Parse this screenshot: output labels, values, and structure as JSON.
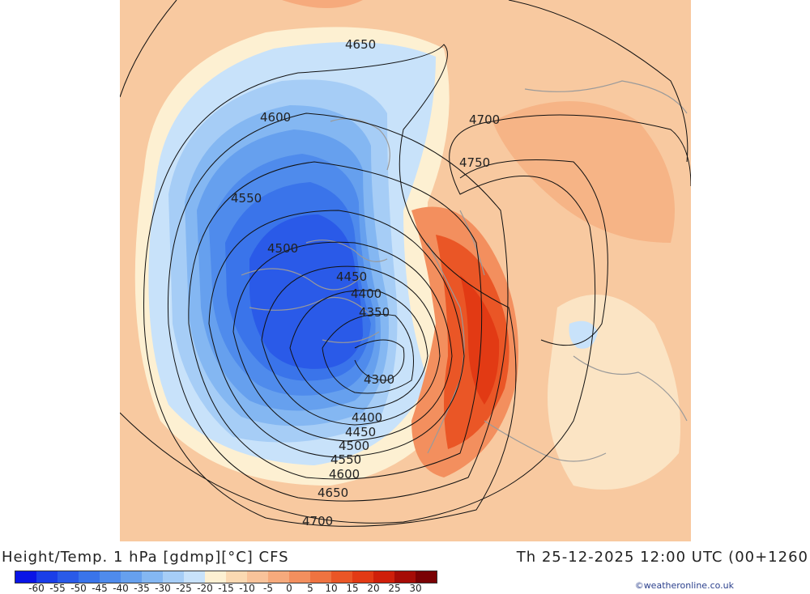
{
  "caption": {
    "left": "Height/Temp. 1 hPa [gdmp][°C] CFS",
    "right": "Th 25-12-2025 12:00 UTC (00+1260"
  },
  "credit": "©weatheronline.co.uk",
  "legend": {
    "ticks": [
      "-60",
      "-55",
      "-50",
      "-45",
      "-40",
      "-35",
      "-30",
      "-25",
      "-20",
      "-15",
      "-10",
      "-5",
      "0",
      "5",
      "10",
      "15",
      "20",
      "25",
      "30"
    ],
    "colors": [
      "#0a14e6",
      "#1a3ee8",
      "#2a5ae8",
      "#3a74ea",
      "#4f8bec",
      "#66a0ee",
      "#84b7f2",
      "#a6cdf6",
      "#c8e2fa",
      "#fdf0d2",
      "#fbd9b2",
      "#f9c39a",
      "#f6aa7c",
      "#f38f5e",
      "#ef7340",
      "#ea5626",
      "#e23a14",
      "#cf1f0a",
      "#a60c06",
      "#7a0204"
    ]
  },
  "contours": [
    {
      "label": "4300"
    },
    {
      "label": "4350"
    },
    {
      "label": "4400"
    },
    {
      "label": "4400"
    },
    {
      "label": "4450"
    },
    {
      "label": "4450"
    },
    {
      "label": "4500"
    },
    {
      "label": "4500"
    },
    {
      "label": "4550"
    },
    {
      "label": "4550"
    },
    {
      "label": "4600"
    },
    {
      "label": "4600"
    },
    {
      "label": "4650"
    },
    {
      "label": "4650"
    },
    {
      "label": "4700"
    },
    {
      "label": "4700"
    },
    {
      "label": "4750"
    }
  ]
}
